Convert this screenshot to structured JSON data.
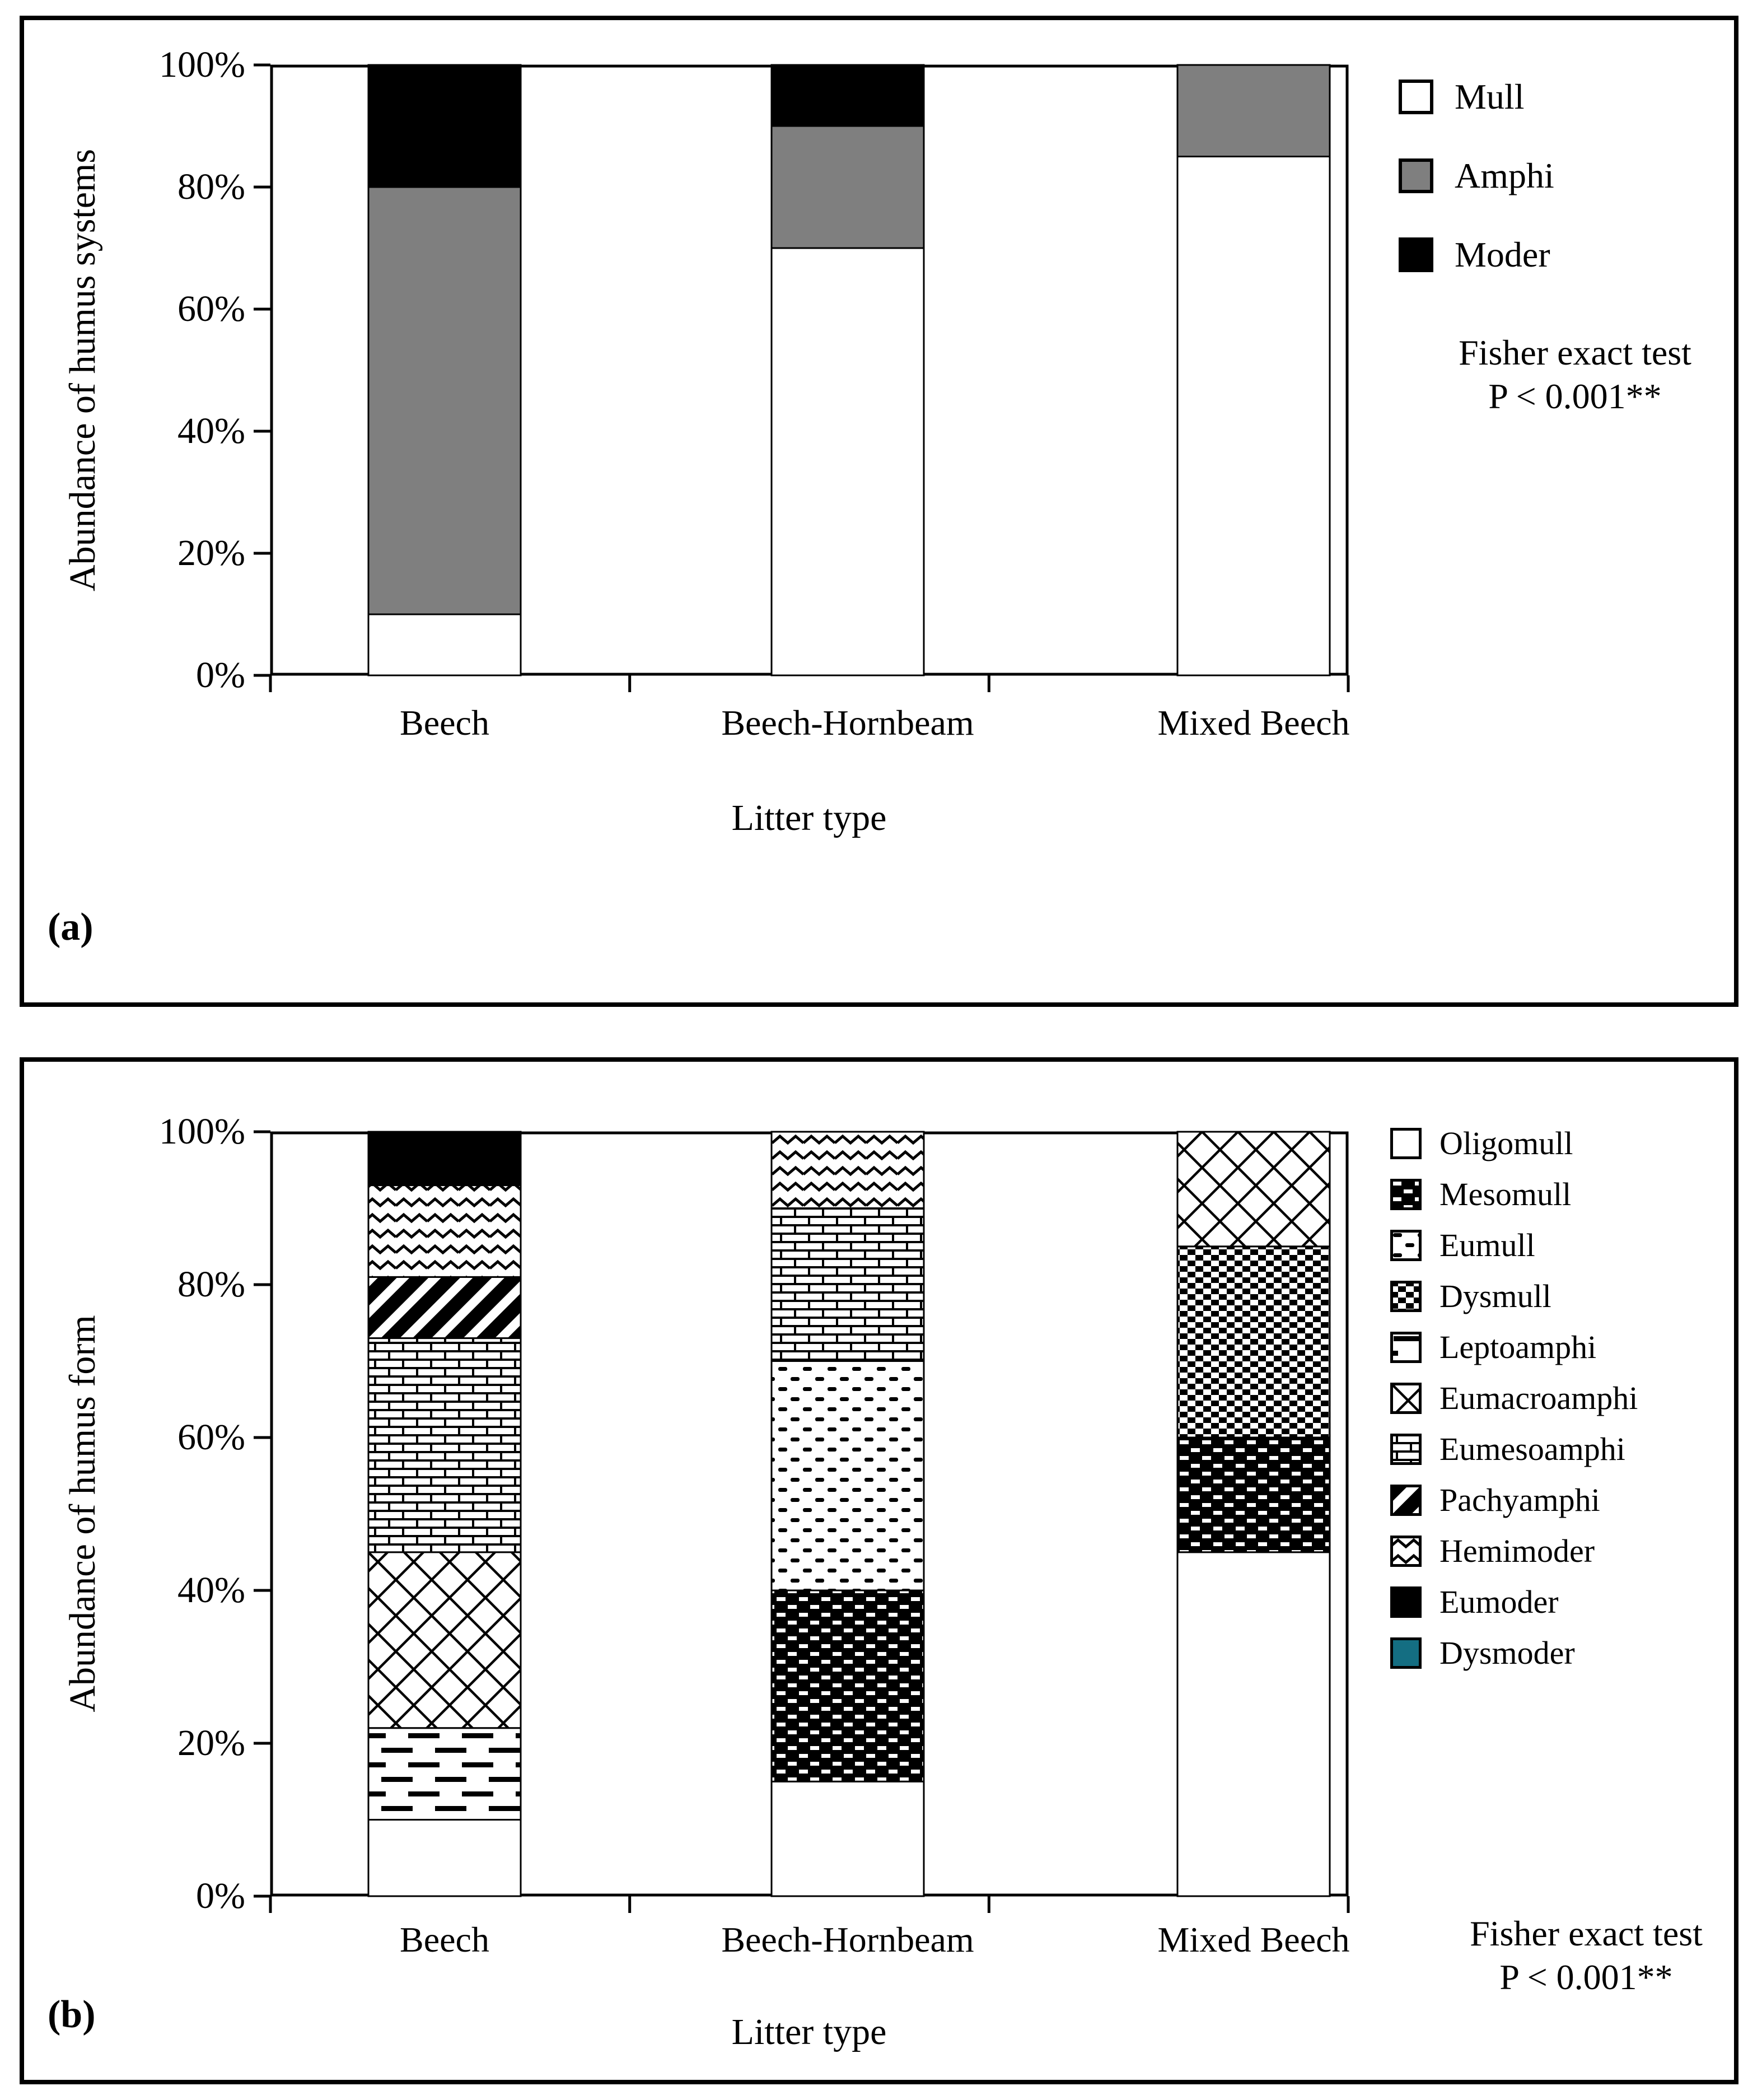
{
  "page": {
    "background": "#ffffff",
    "figure_type": "two-panel stacked bar figure"
  },
  "colors": {
    "bar_white": "#ffffff",
    "amphi_gray": "#7f7f7f",
    "black": "#000000",
    "dysmoder_teal": "#146e82",
    "frame": "#000000"
  },
  "chart_data": [
    {
      "type": "bar",
      "stacked": true,
      "percent_stacked": true,
      "panel_label": "(a)",
      "y_title": "Abundance of humus systems",
      "x_title": "Litter type",
      "categories": [
        "Beech",
        "Beech-Hornbeam",
        "Mixed Beech"
      ],
      "y_ticks": [
        "0%",
        "20%",
        "40%",
        "60%",
        "80%",
        "100%"
      ],
      "ylim": [
        0,
        100
      ],
      "grid": false,
      "legend_position": "right",
      "series": [
        {
          "name": "Mull",
          "pattern": "white",
          "values": [
            10,
            70,
            85
          ]
        },
        {
          "name": "Amphi",
          "pattern": "gray",
          "values": [
            70,
            20,
            15
          ]
        },
        {
          "name": "Moder",
          "pattern": "black",
          "values": [
            20,
            10,
            0
          ]
        }
      ],
      "note": [
        "Fisher exact test",
        "P < 0.001**"
      ]
    },
    {
      "type": "bar",
      "stacked": true,
      "percent_stacked": true,
      "panel_label": "(b)",
      "y_title": "Abundance of humus form",
      "x_title": "Litter type",
      "categories": [
        "Beech",
        "Beech-Hornbeam",
        "Mixed Beech"
      ],
      "y_ticks": [
        "0%",
        "20%",
        "40%",
        "60%",
        "80%",
        "100%"
      ],
      "ylim": [
        0,
        100
      ],
      "grid": false,
      "legend_position": "right",
      "series": [
        {
          "name": "Oligomull",
          "pattern": "white",
          "values": [
            10,
            15,
            45
          ]
        },
        {
          "name": "Mesomull",
          "pattern": "black-dotted",
          "values": [
            0,
            25,
            15
          ]
        },
        {
          "name": "Eumull",
          "pattern": "sparse-dots",
          "values": [
            0,
            30,
            0
          ]
        },
        {
          "name": "Dysmull",
          "pattern": "checker",
          "values": [
            0,
            0,
            25
          ]
        },
        {
          "name": "Leptoamphi",
          "pattern": "dashes",
          "values": [
            12,
            0,
            0
          ]
        },
        {
          "name": "Eumacroamphi",
          "pattern": "crosshatch",
          "values": [
            23,
            0,
            15
          ]
        },
        {
          "name": "Eumesoamphi",
          "pattern": "brick",
          "values": [
            28,
            20,
            0
          ]
        },
        {
          "name": "Pachyamphi",
          "pattern": "diagonal-stripes",
          "values": [
            8,
            0,
            0
          ]
        },
        {
          "name": "Hemimoder",
          "pattern": "zigzag",
          "values": [
            12,
            10,
            0
          ]
        },
        {
          "name": "Eumoder",
          "pattern": "black",
          "values": [
            7,
            0,
            0
          ]
        },
        {
          "name": "Dysmoder",
          "pattern": "teal",
          "values": [
            0,
            0,
            0
          ]
        }
      ],
      "note": [
        "Fisher exact test",
        "P < 0.001**"
      ]
    }
  ]
}
